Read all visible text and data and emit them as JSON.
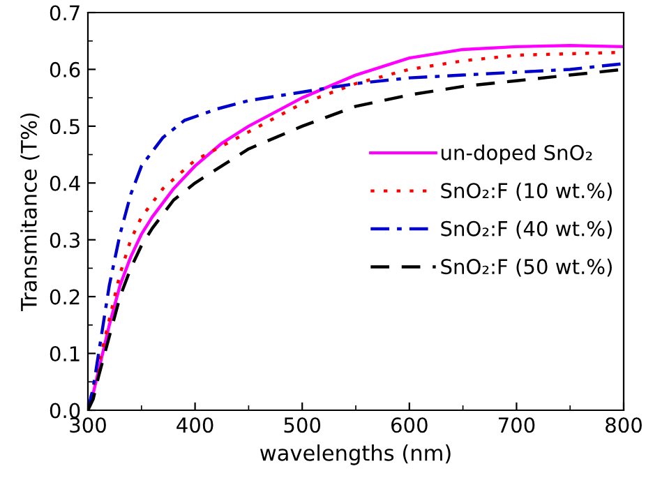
{
  "chart_data": {
    "type": "line",
    "xlabel": "wavelengths (nm)",
    "ylabel": "Transmitance (T%)",
    "xlim": [
      300,
      800
    ],
    "xticks": [
      300,
      400,
      500,
      600,
      700,
      800
    ],
    "ylim": [
      0,
      0.7
    ],
    "yticks": [
      {
        "value": 0,
        "label": "0.0"
      },
      0.1,
      0.2,
      0.3,
      0.4,
      0.5,
      0.6,
      0.7
    ],
    "grid": false,
    "legend": "right",
    "series": [
      {
        "name": "un-doped SnO₂",
        "color": "#ff00ff",
        "line_style": "solid",
        "x": [
          300,
          305,
          310,
          320,
          330,
          340,
          350,
          360,
          380,
          400,
          425,
          450,
          500,
          550,
          600,
          650,
          700,
          750,
          800
        ],
        "values": [
          0,
          0.03,
          0.07,
          0.15,
          0.22,
          0.27,
          0.31,
          0.34,
          0.39,
          0.43,
          0.47,
          0.5,
          0.55,
          0.59,
          0.62,
          0.635,
          0.64,
          0.642,
          0.64
        ]
      },
      {
        "name": "SnO₂:F (10 wt.%)",
        "color": "#ff0000",
        "line_style": "dotted",
        "x": [
          300,
          310,
          320,
          330,
          340,
          350,
          370,
          400,
          450,
          500,
          550,
          600,
          650,
          700,
          800
        ],
        "values": [
          0,
          0.08,
          0.16,
          0.24,
          0.3,
          0.34,
          0.39,
          0.44,
          0.49,
          0.54,
          0.575,
          0.6,
          0.615,
          0.625,
          0.63
        ]
      },
      {
        "name": "SnO₂:F (40 wt.%)",
        "color": "#0000cc",
        "line_style": "dashdot",
        "x": [
          300,
          305,
          310,
          320,
          330,
          340,
          350,
          370,
          390,
          420,
          450,
          500,
          550,
          600,
          650,
          700,
          750,
          800
        ],
        "values": [
          0,
          0.04,
          0.1,
          0.22,
          0.31,
          0.38,
          0.43,
          0.48,
          0.51,
          0.53,
          0.545,
          0.56,
          0.575,
          0.585,
          0.59,
          0.595,
          0.6,
          0.61
        ]
      },
      {
        "name": "SnO₂:F (50 wt.%)",
        "color": "#000000",
        "line_style": "dashed",
        "x": [
          300,
          305,
          310,
          320,
          330,
          340,
          350,
          360,
          380,
          400,
          450,
          500,
          550,
          600,
          650,
          700,
          750,
          800
        ],
        "values": [
          0,
          0.02,
          0.06,
          0.13,
          0.2,
          0.25,
          0.29,
          0.32,
          0.37,
          0.4,
          0.46,
          0.5,
          0.535,
          0.555,
          0.57,
          0.58,
          0.59,
          0.6
        ]
      }
    ]
  }
}
